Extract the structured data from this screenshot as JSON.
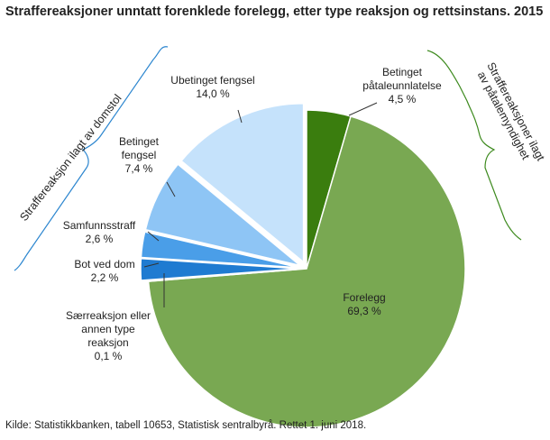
{
  "chart_data": {
    "type": "pie",
    "title": "Straffereaksjoner unntatt forenklede forelegg, etter type reaksjon og rettsinstans. 2015",
    "source": "Kilde: Statistikkbanken, tabell 10653, Statistisk sentralbyrå.  Rettet 1. juni 2018.",
    "unit": "%",
    "slices": [
      {
        "label": "Betinget påtaleunnlatelse",
        "label_lines": [
          "Betinget",
          "påtaleunnlatelse"
        ],
        "value_text": "4,5  %",
        "value": 4.5,
        "color": "#3a7d0e",
        "exploded": false
      },
      {
        "label": "Forelegg",
        "label_lines": [
          "Forelegg"
        ],
        "value_text": "69,3  %",
        "value": 69.3,
        "color": "#79a852",
        "exploded": false
      },
      {
        "label": "Særreaksjon eller annen type reaksjon",
        "label_lines": [
          "Særreaksjon  eller",
          "annen  type",
          "reaksjon"
        ],
        "value_text": "0,1  %",
        "value": 0.1,
        "color": "#0b5fae",
        "exploded": true
      },
      {
        "label": "Bot ved dom",
        "label_lines": [
          "Bot ved dom"
        ],
        "value_text": "2,2  %",
        "value": 2.2,
        "color": "#1f7bd1",
        "exploded": true
      },
      {
        "label": "Samfunnsstraff",
        "label_lines": [
          "Samfunnsstraff"
        ],
        "value_text": "2,6  %",
        "value": 2.6,
        "color": "#4a9ee8",
        "exploded": true
      },
      {
        "label": "Betinget fengsel",
        "label_lines": [
          "Betinget",
          "fengsel"
        ],
        "value_text": "7,4  %",
        "value": 7.4,
        "color": "#8ec5f5",
        "exploded": true
      },
      {
        "label": "Ubetinget fengsel",
        "label_lines": [
          "Ubetinget  fengsel"
        ],
        "value_text": "14,0  %",
        "value": 14.0,
        "color": "#c5e2fb",
        "exploded": true
      }
    ],
    "groups": [
      {
        "label": "Straffereaksjon  ilagt av domstol",
        "color": "#2c86cf"
      },
      {
        "label": "Straffereaksjoner  ilagt av påtalemyndighet",
        "color": "#3d8a1e"
      }
    ]
  }
}
